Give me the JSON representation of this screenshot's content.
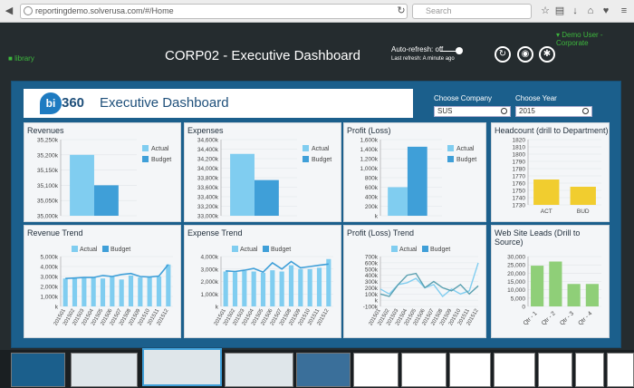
{
  "browser": {
    "url": "reportingdemo.solverusa.com/#/Home",
    "search_placeholder": "Search"
  },
  "header": {
    "library_label": "library",
    "title": "CORP02 - Executive Dashboard",
    "autorefresh": "Auto-refresh: off",
    "last_refresh": "Last refresh: A minute ago",
    "user": "Demo User - Corporate"
  },
  "banner": {
    "logo_letter": "bi",
    "logo_number": "360",
    "title": "Executive Dashboard"
  },
  "filters": {
    "company_label": "Choose Company",
    "company_value": "SUS",
    "year_label": "Choose Year",
    "year_value": "2015"
  },
  "colors": {
    "actual": "#80cdf0",
    "budget": "#3f9fd8",
    "act_yellow": "#f1cd2f",
    "green": "#8fcf78",
    "line_dark": "#5aa0b0"
  },
  "panels": [
    {
      "title": "Revenues",
      "legend": [
        "Actual",
        "Budget"
      ]
    },
    {
      "title": "Expenses",
      "legend": [
        "Actual",
        "Budget"
      ]
    },
    {
      "title": "Profit (Loss)",
      "legend": [
        "Actual",
        "Budget"
      ]
    },
    {
      "title": "Headcount (drill to Department)"
    },
    {
      "title": "Revenue Trend",
      "legend": [
        "Actual",
        "Budget"
      ]
    },
    {
      "title": "Expense Trend",
      "legend": [
        "Actual",
        "Budget"
      ]
    },
    {
      "title": "Profit (Loss) Trend",
      "legend": [
        "Actual",
        "Budget"
      ]
    },
    {
      "title": "Web Site Leads (Drill to Source)"
    }
  ],
  "chart_data": [
    {
      "type": "bar",
      "title": "Revenues",
      "categories": [
        ""
      ],
      "series": [
        {
          "name": "Actual",
          "values": [
            35200
          ]
        },
        {
          "name": "Budget",
          "values": [
            35100
          ]
        }
      ],
      "yticks": [
        "35,250k",
        "35,200k",
        "35,150k",
        "35,100k",
        "35,050k",
        "35,000k"
      ],
      "ylim": [
        35000,
        35250
      ]
    },
    {
      "type": "bar",
      "title": "Expenses",
      "categories": [
        ""
      ],
      "series": [
        {
          "name": "Actual",
          "values": [
            34300
          ]
        },
        {
          "name": "Budget",
          "values": [
            33750
          ]
        }
      ],
      "yticks": [
        "34,600k",
        "34,400k",
        "34,200k",
        "34,000k",
        "33,800k",
        "33,600k",
        "33,400k",
        "33,200k",
        "33,000k"
      ],
      "ylim": [
        33000,
        34600
      ]
    },
    {
      "type": "bar",
      "title": "Profit (Loss)",
      "categories": [
        ""
      ],
      "series": [
        {
          "name": "Actual",
          "values": [
            600
          ]
        },
        {
          "name": "Budget",
          "values": [
            1450
          ]
        }
      ],
      "yticks": [
        "1,600k",
        "1,400k",
        "1,200k",
        "1,000k",
        "800k",
        "600k",
        "400k",
        "200k",
        "k"
      ],
      "ylim": [
        0,
        1600
      ]
    },
    {
      "type": "bar",
      "title": "Headcount (drill to Department)",
      "categories": [
        "ACT",
        "BUD"
      ],
      "values": [
        1765,
        1755
      ],
      "yticks": [
        "1820",
        "1810",
        "1800",
        "1790",
        "1780",
        "1770",
        "1760",
        "1750",
        "1740",
        "1730"
      ],
      "ylim": [
        1730,
        1820
      ]
    },
    {
      "type": "bar",
      "title": "Revenue Trend",
      "categories": [
        "201501",
        "201502",
        "201503",
        "201504",
        "201505",
        "201506",
        "201507",
        "201508",
        "201509",
        "201510",
        "201511",
        "201512"
      ],
      "series": [
        {
          "name": "Actual",
          "values": [
            2800,
            2850,
            2850,
            2900,
            2800,
            3000,
            2700,
            3100,
            2900,
            2950,
            3000,
            4200
          ]
        },
        {
          "name": "Budget",
          "values": [
            2800,
            2850,
            2900,
            2900,
            3100,
            3000,
            3200,
            3300,
            3000,
            2950,
            3050,
            4200
          ]
        }
      ],
      "yticks": [
        "5,000k",
        "4,000k",
        "3,000k",
        "2,000k",
        "1,000k",
        "k"
      ],
      "ylim": [
        0,
        5000
      ]
    },
    {
      "type": "bar",
      "title": "Expense Trend",
      "categories": [
        "201501",
        "201502",
        "201503",
        "201504",
        "201505",
        "201506",
        "201507",
        "201508",
        "201509",
        "201510",
        "201511",
        "201512"
      ],
      "series": [
        {
          "name": "Actual",
          "values": [
            2800,
            2750,
            2850,
            2800,
            2700,
            2900,
            2800,
            3300,
            3000,
            3000,
            3100,
            3800
          ]
        },
        {
          "name": "Budget",
          "values": [
            2850,
            2800,
            2900,
            3050,
            2750,
            3500,
            3000,
            3600,
            3100,
            3200,
            3300,
            3400
          ]
        }
      ],
      "yticks": [
        "4,000k",
        "3,000k",
        "2,000k",
        "1,000k",
        "k"
      ],
      "ylim": [
        0,
        4000
      ]
    },
    {
      "type": "line",
      "title": "Profit (Loss) Trend",
      "categories": [
        "201501",
        "201502",
        "201503",
        "201504",
        "201505",
        "201506",
        "201507",
        "201508",
        "201509",
        "201510",
        "201511",
        "201512"
      ],
      "series": [
        {
          "name": "Actual",
          "values": [
            180,
            100,
            250,
            280,
            350,
            200,
            250,
            60,
            180,
            100,
            150,
            600
          ]
        },
        {
          "name": "Budget",
          "values": [
            100,
            60,
            250,
            400,
            430,
            200,
            300,
            200,
            150,
            250,
            100,
            230
          ]
        }
      ],
      "yticks": [
        "700k",
        "600k",
        "500k",
        "400k",
        "300k",
        "200k",
        "100k",
        "k",
        "-100k"
      ],
      "ylim": [
        -100,
        700
      ]
    },
    {
      "type": "bar",
      "title": "Web Site Leads (Drill to Source)",
      "categories": [
        "Qtr - 1",
        "Qtr - 2",
        "Qtr - 3",
        "Qtr - 4"
      ],
      "values": [
        24500,
        27000,
        13500,
        13500
      ],
      "yticks": [
        "30,000",
        "25,000",
        "20,000",
        "15,000",
        "10,000",
        "5,000",
        "0"
      ],
      "ylim": [
        0,
        30000
      ]
    }
  ]
}
